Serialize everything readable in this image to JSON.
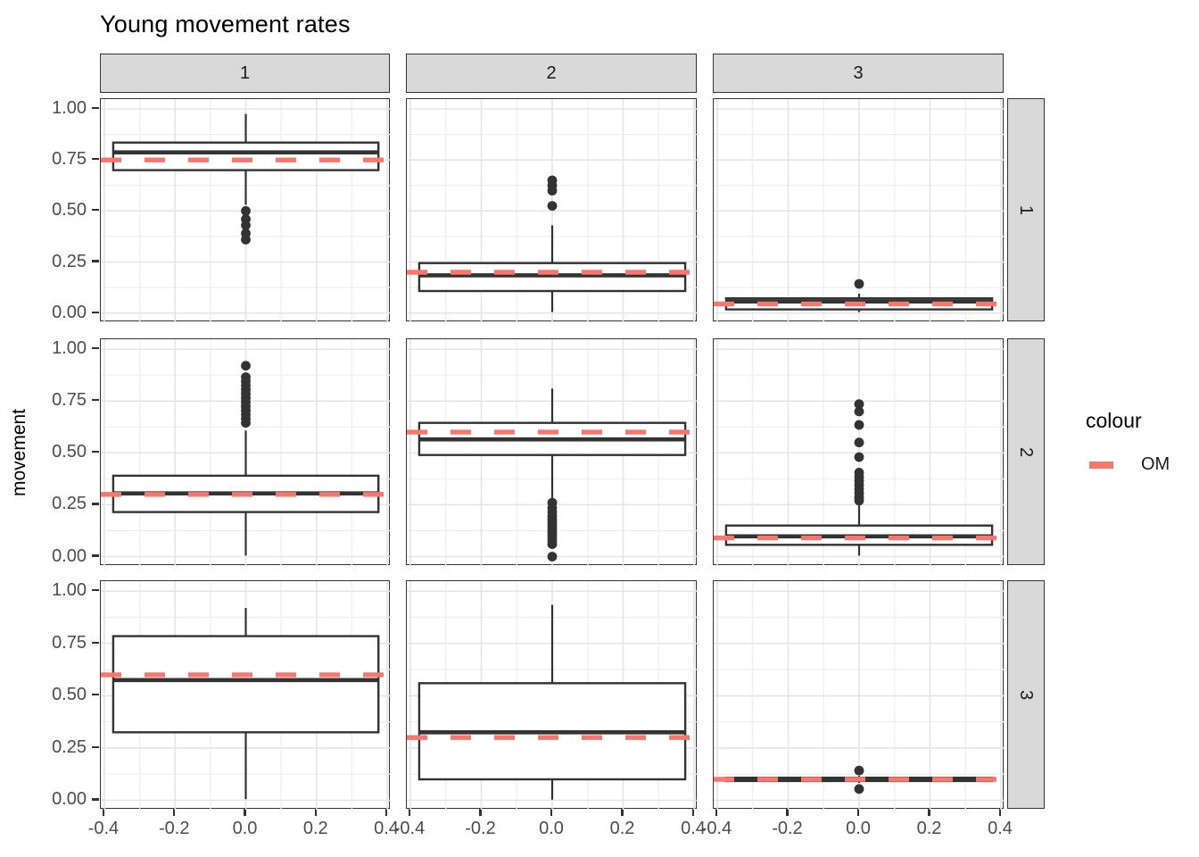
{
  "title": "Young movement rates",
  "colors": {
    "om_line": "#F8766D",
    "box_stroke": "#333333",
    "strip_fill": "#D9D9D9",
    "panel_border": "#333333",
    "grid_major": "#E5E5E5",
    "grid_minor": "#F0F0F0",
    "tick_label": "#4D4D4D",
    "outlier": "#333333"
  },
  "chart_data": {
    "type": "boxplot",
    "title": "Young movement rates",
    "ylabel": "movement",
    "xlabel": "",
    "facet_col_labels": [
      "1",
      "2",
      "3"
    ],
    "facet_row_labels": [
      "1",
      "2",
      "3"
    ],
    "x_tick_labels": [
      "-0.4",
      "-0.2",
      "0.0",
      "0.2",
      "0.4"
    ],
    "x_tick_values": [
      -0.4,
      -0.2,
      0.0,
      0.2,
      0.4
    ],
    "y_tick_labels": [
      "1.00",
      "0.75",
      "0.50",
      "0.25",
      "0.00"
    ],
    "y_tick_values": [
      1.0,
      0.75,
      0.5,
      0.25,
      0.0
    ],
    "x_domain": [
      -0.41,
      0.41
    ],
    "y_domain": [
      -0.045,
      1.048
    ],
    "x_minor_gridlines": [
      -0.3,
      -0.1,
      0.1,
      0.3
    ],
    "y_minor_gridlines": [
      0.125,
      0.375,
      0.625,
      0.875
    ],
    "box_half_width": 0.375,
    "box_center_x": 0.0,
    "grid": true,
    "legend": {
      "title": "colour",
      "position": "right",
      "entries": [
        {
          "label": "OM",
          "color": "#F8766D",
          "linetype": "dashed"
        }
      ]
    },
    "facets": [
      {
        "facet_row": "1",
        "facet_col": "1",
        "om": 0.75,
        "q1": 0.7,
        "median": 0.787,
        "q3": 0.835,
        "whisker_low": 0.53,
        "whisker_high": 0.975,
        "outliers": [
          0.5,
          0.46,
          0.43,
          0.39,
          0.36
        ]
      },
      {
        "facet_row": "1",
        "facet_col": "2",
        "om": 0.2,
        "q1": 0.108,
        "median": 0.185,
        "q3": 0.245,
        "whisker_low": 0.005,
        "whisker_high": 0.43,
        "outliers": [
          0.65,
          0.625,
          0.6,
          0.525
        ]
      },
      {
        "facet_row": "1",
        "facet_col": "3",
        "om": 0.045,
        "q1": 0.018,
        "median": 0.057,
        "q3": 0.072,
        "whisker_low": 0.005,
        "whisker_high": 0.095,
        "outliers": [
          0.143
        ]
      },
      {
        "facet_row": "2",
        "facet_col": "1",
        "om": 0.3,
        "q1": 0.215,
        "median": 0.305,
        "q3": 0.39,
        "whisker_low": 0.005,
        "whisker_high": 0.608,
        "outliers": [
          0.92,
          0.865,
          0.845,
          0.825,
          0.805,
          0.785,
          0.765,
          0.745,
          0.725,
          0.705,
          0.685,
          0.665,
          0.645
        ]
      },
      {
        "facet_row": "2",
        "facet_col": "2",
        "om": 0.6,
        "q1": 0.49,
        "median": 0.565,
        "q3": 0.645,
        "whisker_low": 0.28,
        "whisker_high": 0.81,
        "outliers": [
          0.26,
          0.235,
          0.215,
          0.195,
          0.18,
          0.165,
          0.15,
          0.135,
          0.12,
          0.105,
          0.09,
          0.075,
          0.06,
          0.0
        ]
      },
      {
        "facet_row": "2",
        "facet_col": "3",
        "om": 0.09,
        "q1": 0.057,
        "median": 0.098,
        "q3": 0.15,
        "whisker_low": 0.005,
        "whisker_high": 0.26,
        "outliers": [
          0.735,
          0.7,
          0.635,
          0.55,
          0.48,
          0.405,
          0.385,
          0.365,
          0.345,
          0.325,
          0.305,
          0.285,
          0.27
        ]
      },
      {
        "facet_row": "3",
        "facet_col": "1",
        "om": 0.6,
        "q1": 0.325,
        "median": 0.575,
        "q3": 0.785,
        "whisker_low": 0.005,
        "whisker_high": 0.92,
        "outliers": []
      },
      {
        "facet_row": "3",
        "facet_col": "2",
        "om": 0.3,
        "q1": 0.1,
        "median": 0.325,
        "q3": 0.56,
        "whisker_low": 0.003,
        "whisker_high": 0.935,
        "outliers": []
      },
      {
        "facet_row": "3",
        "facet_col": "3",
        "om": 0.1,
        "q1": 0.092,
        "median": 0.1,
        "q3": 0.108,
        "whisker_low": 0.083,
        "whisker_high": 0.117,
        "outliers": [
          0.142,
          0.054
        ]
      }
    ]
  }
}
